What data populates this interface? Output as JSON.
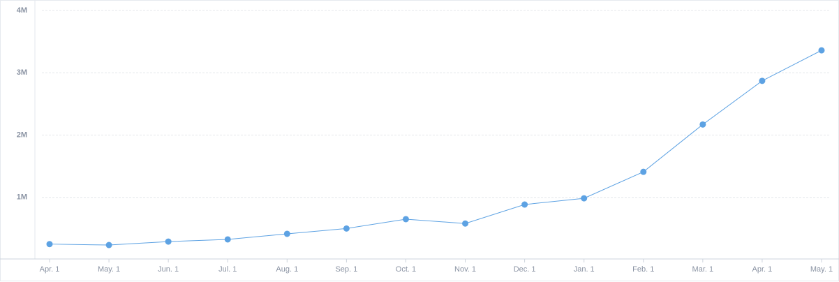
{
  "chart_data": {
    "type": "line",
    "categories": [
      "Apr. 1",
      "May. 1",
      "Jun. 1",
      "Jul. 1",
      "Aug. 1",
      "Sep. 1",
      "Oct. 1",
      "Nov. 1",
      "Dec. 1",
      "Jan. 1",
      "Feb. 1",
      "Mar. 1",
      "Apr. 1",
      "May. 1"
    ],
    "series": [
      {
        "color": "#5da2e3",
        "values": [
          250000,
          235000,
          290000,
          325000,
          415000,
          500000,
          650000,
          580000,
          885000,
          985000,
          1410000,
          2170000,
          2870000,
          3360000
        ]
      }
    ],
    "ylim": [
      0,
      4000000
    ],
    "yticks": [
      {
        "value": 1000000,
        "label": "1M"
      },
      {
        "value": 2000000,
        "label": "2M"
      },
      {
        "value": 3000000,
        "label": "3M"
      },
      {
        "value": 4000000,
        "label": "4M"
      }
    ],
    "grid": true
  }
}
